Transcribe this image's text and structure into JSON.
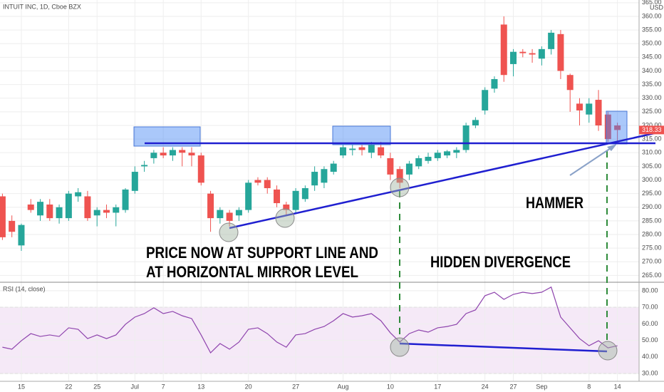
{
  "chart_data": [
    {
      "type": "candlestick",
      "title": "INTUIT INC, 1D, Cboe BZX",
      "currency": "USD",
      "categories": [
        null,
        null,
        "15",
        null,
        null,
        null,
        null,
        "22",
        null,
        null,
        "25",
        null,
        null,
        null,
        "Jul",
        null,
        null,
        "7",
        null,
        null,
        null,
        "13",
        null,
        null,
        null,
        null,
        "20",
        null,
        null,
        null,
        null,
        "27",
        null,
        null,
        null,
        null,
        "Aug",
        null,
        null,
        null,
        null,
        "10",
        null,
        null,
        null,
        null,
        "17",
        null,
        null,
        null,
        null,
        "24",
        null,
        null,
        "27",
        null,
        null,
        "Sep",
        null,
        null,
        null,
        null,
        "8",
        null,
        null,
        "14"
      ],
      "open": [
        294,
        285,
        276,
        291,
        287,
        291,
        286,
        286,
        294,
        294,
        287,
        289,
        288,
        289,
        296,
        305,
        308,
        310,
        309,
        311,
        310,
        309,
        295,
        286,
        288,
        287,
        289,
        300,
        300,
        296.5,
        291,
        289,
        293,
        298,
        299,
        303,
        309,
        311,
        312,
        310,
        312,
        308,
        304,
        302,
        305,
        307,
        308,
        309,
        310,
        311,
        320,
        325.5,
        333.5,
        357,
        342.5,
        347,
        346.5,
        344.5,
        348,
        353.5,
        338.5,
        328,
        324,
        329.4,
        324,
        320
      ],
      "high": [
        295,
        287,
        284,
        293,
        293,
        293,
        291,
        296,
        297,
        296,
        290,
        291,
        291,
        297,
        305,
        307,
        311,
        312,
        312,
        312,
        312,
        310,
        296,
        290,
        289,
        290,
        300,
        301,
        301,
        298,
        292,
        297,
        298,
        305,
        305,
        307,
        313,
        313,
        313,
        314,
        314,
        310,
        305,
        307,
        309,
        310,
        311,
        311,
        312,
        321,
        323,
        334,
        338,
        360,
        348,
        348,
        348,
        349,
        355,
        355,
        339,
        330,
        330,
        333,
        325,
        321
      ],
      "low": [
        278,
        279,
        274,
        288,
        285,
        285,
        284,
        285,
        292,
        285,
        283,
        286,
        283,
        288,
        295,
        303,
        306,
        308,
        307,
        305,
        305,
        298,
        281,
        284,
        283,
        285,
        288,
        298,
        295,
        290,
        287,
        288,
        292,
        296,
        297,
        302,
        308,
        309,
        309,
        308,
        308,
        300,
        297,
        300,
        304,
        306,
        307,
        308,
        308,
        310,
        319,
        324,
        332,
        336,
        338,
        345,
        343,
        342,
        346,
        337,
        325,
        320,
        321,
        318,
        314,
        314
      ],
      "close": [
        279,
        281,
        283.5,
        289,
        292,
        286,
        290,
        295,
        295.5,
        286,
        289,
        288,
        290,
        296.5,
        303,
        305.5,
        310,
        309,
        311,
        310,
        309,
        299,
        286,
        289,
        285,
        289,
        299,
        299,
        297,
        291.5,
        289,
        296,
        297,
        303,
        304,
        306,
        312,
        311.5,
        311,
        313,
        309,
        302,
        299,
        306,
        308,
        308.5,
        310,
        310.5,
        311,
        320,
        322,
        333,
        337,
        338.5,
        347,
        346.5,
        346,
        348,
        354,
        340,
        333,
        325.5,
        328,
        320,
        315,
        318.33
      ],
      "up_color": "#26a69a",
      "down_color": "#ef5350",
      "ylim": [
        262.5,
        366
      ],
      "yticks": [
        {
          "value": 265,
          "label": "265.00"
        },
        {
          "value": 270,
          "label": "270.00"
        },
        {
          "value": 275,
          "label": "275.00"
        },
        {
          "value": 280,
          "label": "280.00"
        },
        {
          "value": 285,
          "label": "285.00"
        },
        {
          "value": 290,
          "label": "290.00"
        },
        {
          "value": 295,
          "label": "295.00"
        },
        {
          "value": 300,
          "label": "300.00"
        },
        {
          "value": 305,
          "label": "305.00"
        },
        {
          "value": 310,
          "label": "310.00"
        },
        {
          "value": 315,
          "label": "315.00"
        },
        {
          "value": 320,
          "label": "320.00"
        },
        {
          "value": 325,
          "label": "325.00"
        },
        {
          "value": 330,
          "label": "330.00"
        },
        {
          "value": 335,
          "label": "335.00"
        },
        {
          "value": 340,
          "label": "340.00"
        },
        {
          "value": 345,
          "label": "345.00"
        },
        {
          "value": 350,
          "label": "350.00"
        },
        {
          "value": 355,
          "label": "355.00"
        },
        {
          "value": 360,
          "label": "360.00"
        },
        {
          "value": 365,
          "label": "365.00"
        }
      ],
      "grid": true,
      "annotations": [
        "PRICE NOW AT SUPPORT LINE AND",
        "AT HORIZONTAL MIRROR LEVEL",
        "HIDDEN DIVERGENCE",
        "HAMMER"
      ]
    },
    {
      "type": "line",
      "title": "RSI (14, close)",
      "color": "#8e44ad",
      "values": [
        45.9,
        44.7,
        49.8,
        54.1,
        52.4,
        53.3,
        52.4,
        57.6,
        56.7,
        51.1,
        53.3,
        51.1,
        53.3,
        59.7,
        64.1,
        66.2,
        69.7,
        66.2,
        67.5,
        64.9,
        63.2,
        53.3,
        42.5,
        48.1,
        44.7,
        49.0,
        56.7,
        57.6,
        54.1,
        49.0,
        45.9,
        53.3,
        54.1,
        56.7,
        58.4,
        61.9,
        66.2,
        64.1,
        64.9,
        66.2,
        61.9,
        54.6,
        49.0,
        54.1,
        56.3,
        55.0,
        57.6,
        58.4,
        59.7,
        66.2,
        68.4,
        77.0,
        79.1,
        74.8,
        77.8,
        79.1,
        78.3,
        79.1,
        82.2,
        64.1,
        57.6,
        51.1,
        46.8,
        49.8,
        45.5,
        46.8
      ],
      "band": [
        30,
        70
      ],
      "ylim": [
        25.3,
        84.7
      ],
      "yticks": [
        {
          "value": 30,
          "label": "30.00"
        },
        {
          "value": 40,
          "label": "40.00"
        },
        {
          "value": 50,
          "label": "50.00"
        },
        {
          "value": 60,
          "label": "60.00"
        },
        {
          "value": 70,
          "label": "70.00"
        },
        {
          "value": 80,
          "label": "80.00"
        }
      ],
      "grid": true
    }
  ]
}
